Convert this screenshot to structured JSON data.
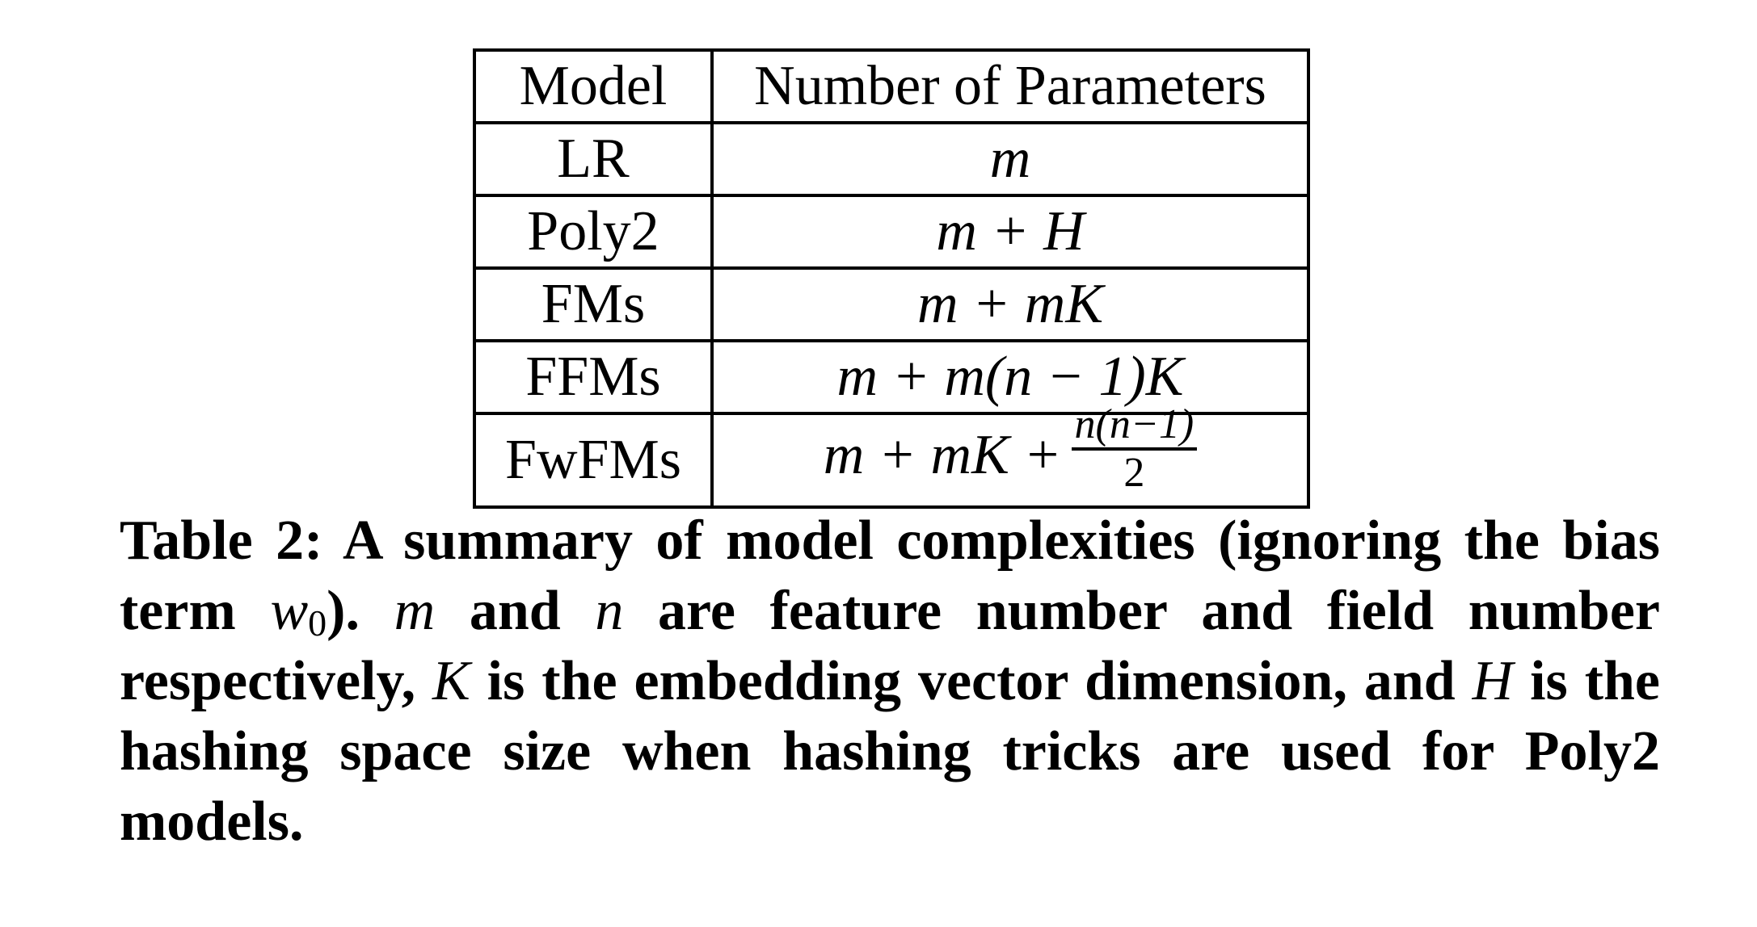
{
  "table": {
    "headers": {
      "model": "Model",
      "params": "Number of Parameters"
    },
    "rows": [
      {
        "model": "LR",
        "params": "m"
      },
      {
        "model": "Poly2",
        "params": "m + H"
      },
      {
        "model": "FMs",
        "params": "m + mK"
      },
      {
        "model": "FFMs",
        "params": "m + m(n − 1)K"
      },
      {
        "model": "FwFMs",
        "params": "m + mK +",
        "fraction": {
          "numerator": "n(n−1)",
          "denominator": "2"
        }
      }
    ]
  },
  "caption": {
    "label": "Table 2:",
    "t1": "A summary of model complexities (ignoring the bias term ",
    "w": "w",
    "w_sub": "0",
    "t2": "). ",
    "m": "m",
    "t3": " and ",
    "n": "n",
    "t4": " are feature number and field number respectively, ",
    "K": "K",
    "t5": " is the embedding vector dimension, and ",
    "H": "H",
    "t6": " is the hashing space size when hashing tricks are used for Poly2 models."
  }
}
